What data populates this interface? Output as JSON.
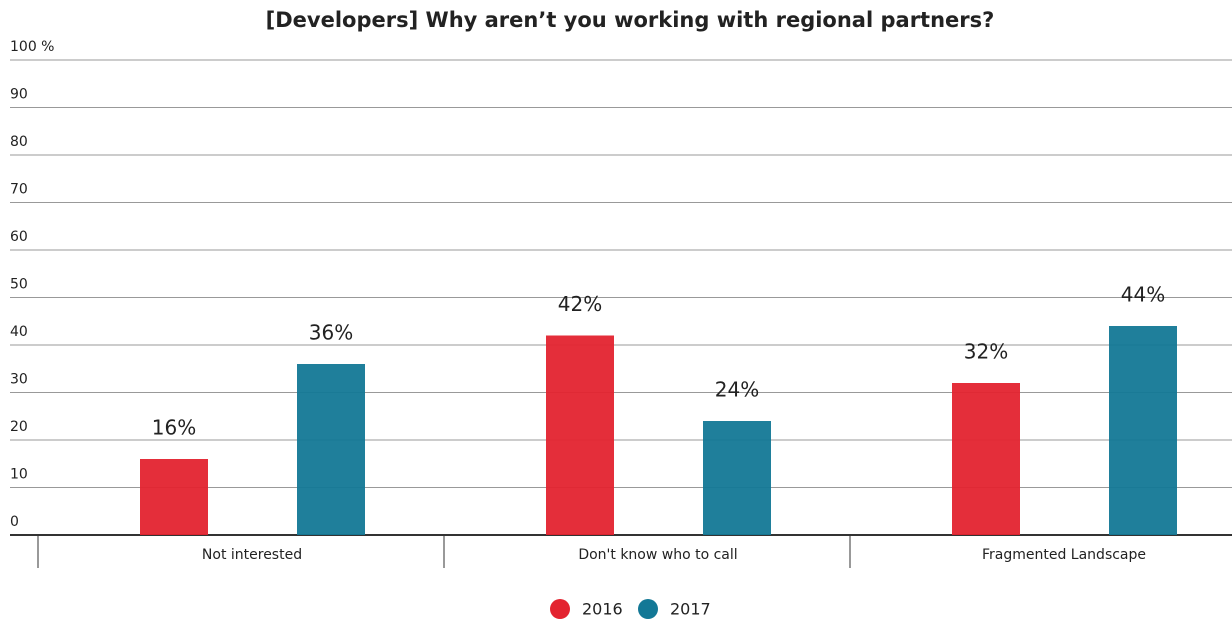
{
  "chart_data": {
    "type": "bar",
    "title": "[Developers] Why aren’t you working with regional partners?",
    "categories": [
      "Not interested",
      "Don't know who to call",
      "Fragmented Landscape"
    ],
    "series": [
      {
        "name": "2016",
        "color": "#e3232f",
        "values": [
          16,
          42,
          32
        ],
        "value_labels": [
          "16%",
          "42%",
          "32%"
        ]
      },
      {
        "name": "2017",
        "color": "#137896",
        "values": [
          36,
          24,
          44
        ],
        "value_labels": [
          "36%",
          "24%",
          "44%"
        ]
      }
    ],
    "ylim": [
      0,
      100
    ],
    "yticks": [
      0,
      10,
      20,
      30,
      40,
      50,
      60,
      70,
      80,
      90,
      {
        "value": 100,
        "label": "100 %"
      }
    ],
    "grid": true
  }
}
